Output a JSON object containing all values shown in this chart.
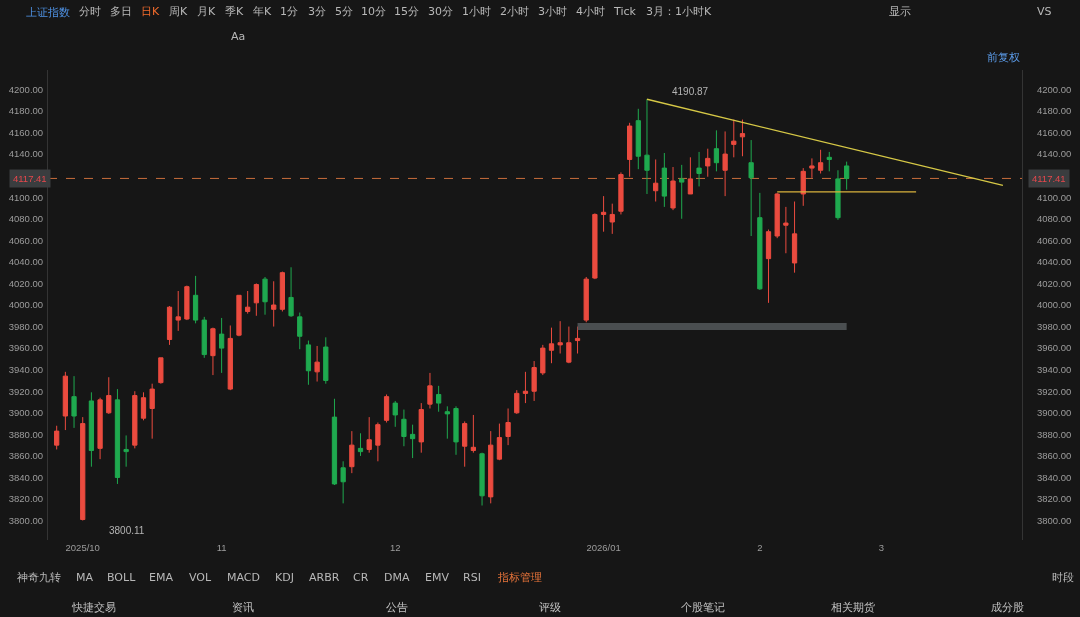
{
  "chart_data": {
    "type": "candlestick",
    "title": "上证指数",
    "categories": [
      null,
      null,
      null,
      "2025/10",
      null,
      null,
      null,
      null,
      null,
      null,
      null,
      null,
      null,
      null,
      null,
      null,
      null,
      null,
      null,
      "11",
      null,
      null,
      null,
      null,
      null,
      null,
      null,
      null,
      null,
      null,
      null,
      null,
      null,
      null,
      null,
      null,
      null,
      null,
      null,
      "12",
      null,
      null,
      null,
      null,
      null,
      null,
      null,
      null,
      null,
      null,
      null,
      null,
      null,
      null,
      null,
      null,
      null,
      null,
      null,
      null,
      null,
      null,
      null,
      "2026/01",
      null,
      null,
      null,
      null,
      null,
      null,
      null,
      null,
      null,
      null,
      null,
      null,
      null,
      null,
      null,
      null,
      null,
      "2",
      null,
      null,
      null,
      null,
      null,
      null,
      null,
      null,
      null,
      null,
      null,
      null,
      null,
      "3",
      null,
      null,
      null,
      null,
      null,
      null,
      null,
      null,
      null,
      null,
      null,
      null,
      null,
      null,
      null,
      null
    ],
    "ohlc": [
      [
        3870,
        3888,
        3866,
        3883
      ],
      [
        3897,
        3938,
        3884,
        3934
      ],
      [
        3915,
        3934,
        3886,
        3897
      ],
      [
        3801,
        3896,
        3800.11,
        3890
      ],
      [
        3911,
        3919,
        3850,
        3865
      ],
      [
        3867,
        3914,
        3857,
        3912
      ],
      [
        3900,
        3933,
        3899,
        3916
      ],
      [
        3912,
        3922,
        3834,
        3840
      ],
      [
        3866,
        3879,
        3850,
        3864
      ],
      [
        3870,
        3920,
        3867,
        3916
      ],
      [
        3895,
        3919,
        3893,
        3914
      ],
      [
        3904,
        3927,
        3876,
        3922
      ],
      [
        3928,
        3951,
        3927,
        3951
      ],
      [
        3968,
        3999,
        3963,
        3998
      ],
      [
        3986,
        4013,
        3976,
        3989
      ],
      [
        3987,
        4018,
        3986,
        4017
      ],
      [
        4009,
        4027,
        3983,
        3986
      ],
      [
        3986,
        3989,
        3951,
        3954
      ],
      [
        3953,
        3979,
        3935,
        3978
      ],
      [
        3973,
        3988,
        3937,
        3960
      ],
      [
        3922,
        3981,
        3921,
        3969
      ],
      [
        3972,
        4009,
        3971,
        4009
      ],
      [
        3994,
        4013,
        3992,
        3998
      ],
      [
        4002,
        4020,
        3990,
        4019
      ],
      [
        4024,
        4026,
        3991,
        4003
      ],
      [
        3996,
        4022,
        3980,
        4000
      ],
      [
        3996,
        4031,
        3994,
        4030
      ],
      [
        4007,
        4035,
        3989,
        3990
      ],
      [
        3989,
        3993,
        3959,
        3971
      ],
      [
        3963,
        3967,
        3926,
        3939
      ],
      [
        3938,
        3962,
        3929,
        3947
      ],
      [
        3961,
        3970,
        3927,
        3930
      ],
      [
        3896,
        3913,
        3833,
        3834
      ],
      [
        3849,
        3855,
        3816,
        3836
      ],
      [
        3850,
        3883,
        3844,
        3870
      ],
      [
        3867,
        3881,
        3860,
        3864
      ],
      [
        3866,
        3896,
        3863,
        3875
      ],
      [
        3870,
        3891,
        3855,
        3889
      ],
      [
        3893,
        3917,
        3891,
        3915
      ],
      [
        3909,
        3911,
        3887,
        3898
      ],
      [
        3894,
        3903,
        3869,
        3878
      ],
      [
        3880,
        3889,
        3858,
        3876
      ],
      [
        3873,
        3909,
        3863,
        3903
      ],
      [
        3908,
        3937,
        3904,
        3925
      ],
      [
        3917,
        3925,
        3901,
        3909
      ],
      [
        3901,
        3906,
        3876,
        3899
      ],
      [
        3904,
        3906,
        3861,
        3873
      ],
      [
        3869,
        3892,
        3850,
        3890
      ],
      [
        3865,
        3898,
        3863,
        3868
      ],
      [
        3862,
        3863,
        3814,
        3823
      ],
      [
        3822,
        3883,
        3816,
        3870
      ],
      [
        3857,
        3890,
        3856,
        3877
      ],
      [
        3878,
        3904,
        3870,
        3891
      ],
      [
        3900,
        3921,
        3899,
        3918
      ],
      [
        3918,
        3938,
        3909,
        3920
      ],
      [
        3920,
        3948,
        3911,
        3942
      ],
      [
        3937,
        3963,
        3935,
        3960
      ],
      [
        3958,
        3979,
        3946,
        3964
      ],
      [
        3963,
        3985,
        3955,
        3965
      ],
      [
        3947,
        3980,
        3946,
        3965
      ],
      [
        3967,
        3980,
        3955,
        3969
      ],
      [
        3986,
        4026,
        3984,
        4024
      ],
      [
        4025,
        4085,
        4024,
        4084
      ],
      [
        4084,
        4101,
        4068,
        4086
      ],
      [
        4077,
        4094,
        4066,
        4084
      ],
      [
        4087,
        4123,
        4084,
        4121
      ],
      [
        4135,
        4169,
        4119,
        4166
      ],
      [
        4171,
        4182,
        4126,
        4138
      ],
      [
        4139,
        4190.87,
        4103,
        4125
      ],
      [
        4106,
        4135,
        4096,
        4113
      ],
      [
        4127,
        4141,
        4091,
        4101
      ],
      [
        4090,
        4128,
        4088,
        4115
      ],
      [
        4117,
        4130,
        4080,
        4114
      ],
      [
        4103,
        4137,
        4103,
        4117
      ],
      [
        4127,
        4142,
        4110,
        4122
      ],
      [
        4129,
        4145,
        4119,
        4136
      ],
      [
        4145,
        4162,
        4124,
        4132
      ],
      [
        4125,
        4161,
        4101,
        4140
      ],
      [
        4149,
        4172,
        4137,
        4152
      ],
      [
        4156,
        4172,
        4138,
        4159
      ],
      [
        4132,
        4153,
        4064,
        4118
      ],
      [
        4081,
        4104,
        4014,
        4015
      ],
      [
        4043,
        4070,
        4002,
        4068
      ],
      [
        4064,
        4104,
        4062,
        4103
      ],
      [
        4074,
        4091,
        4048,
        4076
      ],
      [
        4039,
        4096,
        4030,
        4066
      ],
      [
        4103,
        4127,
        4092,
        4124
      ],
      [
        4127,
        4136,
        4118,
        4129
      ],
      [
        4125,
        4144,
        4122,
        4132
      ],
      [
        4137,
        4142,
        4124,
        4135
      ],
      [
        4117,
        4125,
        4079,
        4081
      ],
      [
        4129,
        4133,
        4107,
        4117.41
      ],
      null,
      null,
      null,
      null,
      null,
      null,
      null,
      null,
      null,
      null,
      null,
      null,
      null,
      null,
      null,
      null,
      null,
      null,
      null,
      null
    ],
    "colors": [
      "#eb4b3f",
      "#eb4b3f",
      "#1fa94f",
      "#eb4b3f",
      "#1fa94f",
      "#eb4b3f",
      "#eb4b3f",
      "#1fa94f",
      "#1fa94f",
      "#eb4b3f",
      "#eb4b3f",
      "#eb4b3f",
      "#eb4b3f",
      "#eb4b3f",
      "#eb4b3f",
      "#eb4b3f",
      "#1fa94f",
      "#1fa94f",
      "#eb4b3f",
      "#1fa94f",
      "#eb4b3f",
      "#eb4b3f",
      "#eb4b3f",
      "#eb4b3f",
      "#1fa94f",
      "#eb4b3f",
      "#eb4b3f",
      "#1fa94f",
      "#1fa94f",
      "#1fa94f",
      "#eb4b3f",
      "#1fa94f",
      "#1fa94f",
      "#1fa94f",
      "#eb4b3f",
      "#1fa94f",
      "#eb4b3f",
      "#eb4b3f",
      "#eb4b3f",
      "#1fa94f",
      "#1fa94f",
      "#1fa94f",
      "#eb4b3f",
      "#eb4b3f",
      "#1fa94f",
      "#1fa94f",
      "#1fa94f",
      "#eb4b3f",
      "#eb4b3f",
      "#1fa94f",
      "#eb4b3f",
      "#eb4b3f",
      "#eb4b3f",
      "#eb4b3f",
      "#eb4b3f",
      "#eb4b3f",
      "#eb4b3f",
      "#eb4b3f",
      "#eb4b3f",
      "#eb4b3f",
      "#eb4b3f",
      "#eb4b3f",
      "#eb4b3f",
      "#eb4b3f",
      "#eb4b3f",
      "#eb4b3f",
      "#eb4b3f",
      "#1fa94f",
      "#1fa94f",
      "#eb4b3f",
      "#1fa94f",
      "#eb4b3f",
      "#1fa94f",
      "#eb4b3f",
      "#1fa94f",
      "#eb4b3f",
      "#1fa94f",
      "#eb4b3f",
      "#eb4b3f",
      "#eb4b3f",
      "#1fa94f",
      "#1fa94f",
      "#eb4b3f",
      "#eb4b3f",
      "#eb4b3f",
      "#eb4b3f",
      "#eb4b3f",
      "#eb4b3f",
      "#eb4b3f",
      "#1fa94f",
      "#1fa94f",
      "#1fa94f",
      null,
      null,
      null,
      null,
      null,
      null,
      null,
      null,
      null,
      null,
      null,
      null,
      null,
      null,
      null,
      null,
      null,
      null,
      null,
      null
    ],
    "series": [
      {
        "type": "line",
        "color": "#d6c846",
        "values": [
          null,
          null,
          null,
          null,
          null,
          null,
          null,
          null,
          null,
          null,
          null,
          null,
          null,
          null,
          null,
          null,
          null,
          null,
          null,
          null,
          null,
          null,
          null,
          null,
          null,
          null,
          null,
          null,
          null,
          null,
          null,
          null,
          null,
          null,
          null,
          null,
          null,
          null,
          null,
          null,
          null,
          null,
          null,
          null,
          null,
          null,
          null,
          null,
          null,
          null,
          null,
          null,
          null,
          null,
          null,
          null,
          null,
          null,
          null,
          null,
          null,
          null,
          null,
          null,
          null,
          null,
          null,
          null,
          4190.87,
          null,
          null,
          null,
          null,
          null,
          null,
          null,
          null,
          null,
          null,
          null,
          null,
          null,
          null,
          null,
          null,
          null,
          null,
          null,
          null,
          null,
          null,
          null,
          null,
          null,
          null,
          null,
          null,
          null,
          null,
          null,
          null,
          null,
          null,
          null,
          null,
          null,
          null,
          null,
          null,
          4111,
          null,
          null
        ]
      },
      {
        "type": "line",
        "color": "#d8b23c",
        "values": [
          null,
          null,
          null,
          null,
          null,
          null,
          null,
          null,
          null,
          null,
          null,
          null,
          null,
          null,
          null,
          null,
          null,
          null,
          null,
          null,
          null,
          null,
          null,
          null,
          null,
          null,
          null,
          null,
          null,
          null,
          null,
          null,
          null,
          null,
          null,
          null,
          null,
          null,
          null,
          null,
          null,
          null,
          null,
          null,
          null,
          null,
          null,
          null,
          null,
          null,
          null,
          null,
          null,
          null,
          null,
          null,
          null,
          null,
          null,
          null,
          null,
          null,
          null,
          null,
          null,
          null,
          null,
          null,
          null,
          null,
          null,
          null,
          null,
          null,
          null,
          null,
          null,
          null,
          null,
          null,
          null,
          null,
          null,
          4105,
          null,
          null,
          null,
          null,
          null,
          null,
          null,
          null,
          null,
          null,
          null,
          null,
          null,
          null,
          null,
          4105,
          null,
          null,
          null,
          null,
          null,
          null,
          null,
          null,
          null,
          null,
          null,
          null
        ]
      },
      {
        "type": "line",
        "color": "#4a4e50",
        "values": [
          null,
          null,
          null,
          null,
          null,
          null,
          null,
          null,
          null,
          null,
          null,
          null,
          null,
          null,
          null,
          null,
          null,
          null,
          null,
          null,
          null,
          null,
          null,
          null,
          null,
          null,
          null,
          null,
          null,
          null,
          null,
          null,
          null,
          null,
          null,
          null,
          null,
          null,
          null,
          null,
          null,
          null,
          null,
          null,
          null,
          null,
          null,
          null,
          null,
          null,
          null,
          null,
          null,
          null,
          null,
          null,
          null,
          null,
          null,
          null,
          3980,
          null,
          null,
          null,
          null,
          null,
          null,
          null,
          null,
          null,
          null,
          null,
          null,
          null,
          null,
          null,
          null,
          null,
          null,
          null,
          null,
          null,
          null,
          null,
          null,
          null,
          null,
          null,
          null,
          null,
          null,
          3980,
          null,
          null,
          null,
          null,
          null,
          null,
          null,
          null,
          null,
          null,
          null,
          null,
          null,
          null,
          null,
          null,
          null,
          null,
          null,
          null
        ]
      }
    ],
    "ylim": [
      3782,
      4218
    ],
    "yticks": [
      {
        "value": 3800,
        "label": "3800.00"
      },
      {
        "value": 3820,
        "label": "3820.00"
      },
      {
        "value": 3840,
        "label": "3840.00"
      },
      {
        "value": 3860,
        "label": "3860.00"
      },
      {
        "value": 3880,
        "label": "3880.00"
      },
      {
        "value": 3900,
        "label": "3900.00"
      },
      {
        "value": 3920,
        "label": "3920.00"
      },
      {
        "value": 3940,
        "label": "3940.00"
      },
      {
        "value": 3960,
        "label": "3960.00"
      },
      {
        "value": 3980,
        "label": "3980.00"
      },
      {
        "value": 4000,
        "label": "4000.00"
      },
      {
        "value": 4020,
        "label": "4020.00"
      },
      {
        "value": 4040,
        "label": "4040.00"
      },
      {
        "value": 4060,
        "label": "4060.00"
      },
      {
        "value": 4080,
        "label": "4080.00"
      },
      {
        "value": 4100,
        "label": "4100.00"
      },
      {
        "value": 4140,
        "label": "4140.00"
      },
      {
        "value": 4160,
        "label": "4160.00"
      },
      {
        "value": 4180,
        "label": "4180.00"
      },
      {
        "value": 4200,
        "label": "4200.00"
      }
    ],
    "y2lim": [
      3782,
      4218
    ],
    "y2ticks": [
      {
        "value": 3800,
        "label": "3800.00"
      },
      {
        "value": 3820,
        "label": "3820.00"
      },
      {
        "value": 3840,
        "label": "3840.00"
      },
      {
        "value": 3860,
        "label": "3860.00"
      },
      {
        "value": 3880,
        "label": "3880.00"
      },
      {
        "value": 3900,
        "label": "3900.00"
      },
      {
        "value": 3920,
        "label": "3920.00"
      },
      {
        "value": 3940,
        "label": "3940.00"
      },
      {
        "value": 3960,
        "label": "3960.00"
      },
      {
        "value": 3980,
        "label": "3980.00"
      },
      {
        "value": 4000,
        "label": "4000.00"
      },
      {
        "value": 4020,
        "label": "4020.00"
      },
      {
        "value": 4040,
        "label": "4040.00"
      },
      {
        "value": 4060,
        "label": "4060.00"
      },
      {
        "value": 4080,
        "label": "4080.00"
      },
      {
        "value": 4100,
        "label": "4100.00"
      },
      {
        "value": 4140,
        "label": "4140.00"
      },
      {
        "value": 4160,
        "label": "4160.00"
      },
      {
        "value": 4180,
        "label": "4180.00"
      },
      {
        "value": 4200,
        "label": "4200.00"
      }
    ],
    "ref_lines": [
      {
        "axis": "y",
        "value": 4117.41,
        "label": "4117.41",
        "color": "#c86e3c",
        "line_style": "dashed"
      }
    ],
    "annotations": [
      "分时",
      "多日",
      "日K",
      "周K",
      "月K",
      "季K",
      "年K",
      "1分",
      "3分",
      "5分",
      "10分",
      "15分",
      "30分",
      "1小时",
      "2小时",
      "3小时",
      "4小时",
      "Tick",
      "3月：1小时K",
      "显示",
      "VS",
      "Aa",
      "前复权",
      "神奇九转",
      "MA",
      "BOLL",
      "EMA",
      "VOL",
      "MACD",
      "KDJ",
      "ARBR",
      "CR",
      "DMA",
      "EMV",
      "RSI",
      "指标管理",
      "时段",
      "快捷交易",
      "资讯",
      "公告",
      "评级",
      "个股笔记",
      "相关期货",
      "成分股",
      "4190.87",
      "3800.11"
    ],
    "grid": false
  }
}
